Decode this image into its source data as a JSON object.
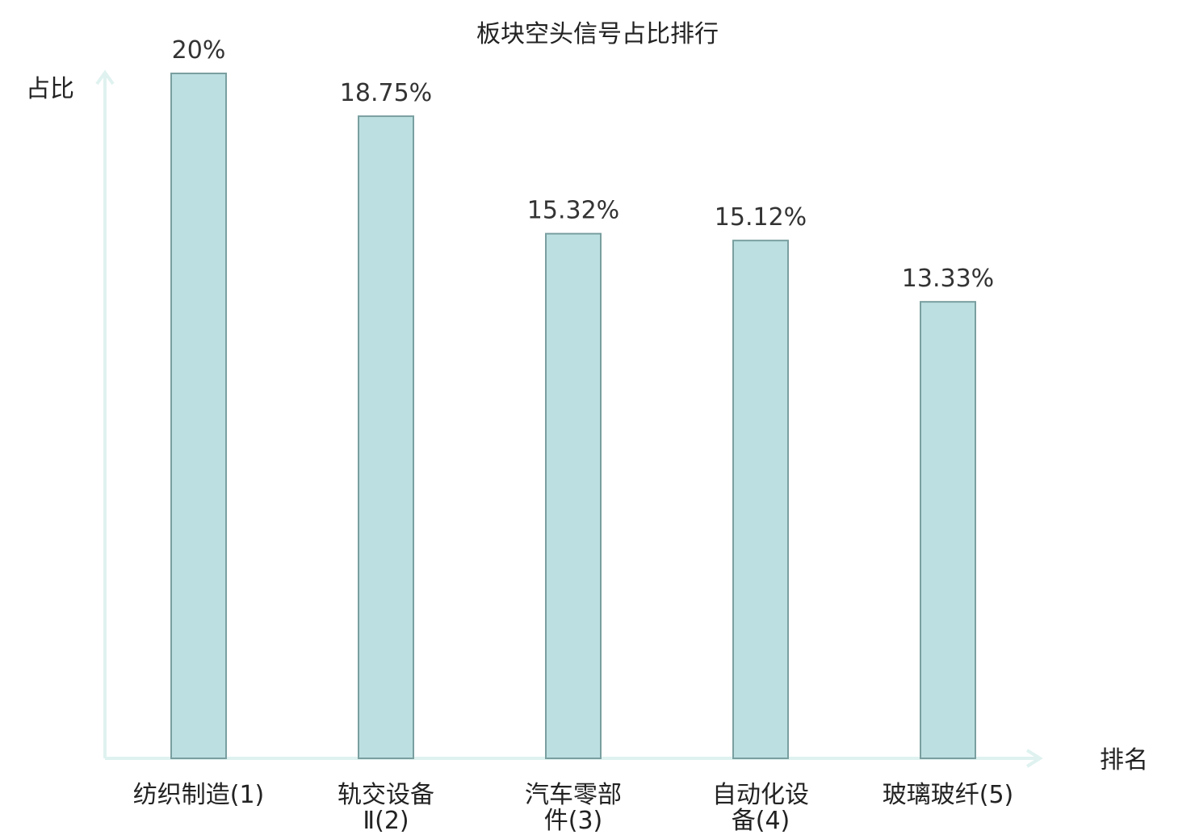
{
  "chart_data": {
    "type": "bar",
    "title": "板块空头信号占比排行",
    "ylabel": "占比",
    "xlabel": "排名",
    "categories": [
      {
        "lines": [
          "纺织制造(1)"
        ],
        "highlight": true
      },
      {
        "lines": [
          "轨交设备",
          "Ⅱ(2)"
        ],
        "highlight": false
      },
      {
        "lines": [
          "汽车零部",
          "件(3)"
        ],
        "highlight": false
      },
      {
        "lines": [
          "自动化设",
          "备(4)"
        ],
        "highlight": false
      },
      {
        "lines": [
          "玻璃玻纤(5)"
        ],
        "highlight": false
      }
    ],
    "values": [
      20,
      18.75,
      15.32,
      15.12,
      13.33
    ],
    "value_labels": [
      "20%",
      "18.75%",
      "15.32%",
      "15.12%",
      "13.33%"
    ],
    "ylim": [
      0,
      20
    ],
    "grid": false,
    "colors": {
      "bar_fill": "#bce0e1",
      "bar_stroke": "#7a9fa0",
      "axis": "#dff2ef",
      "highlight_text": "#e0191b",
      "text": "#222222"
    }
  }
}
